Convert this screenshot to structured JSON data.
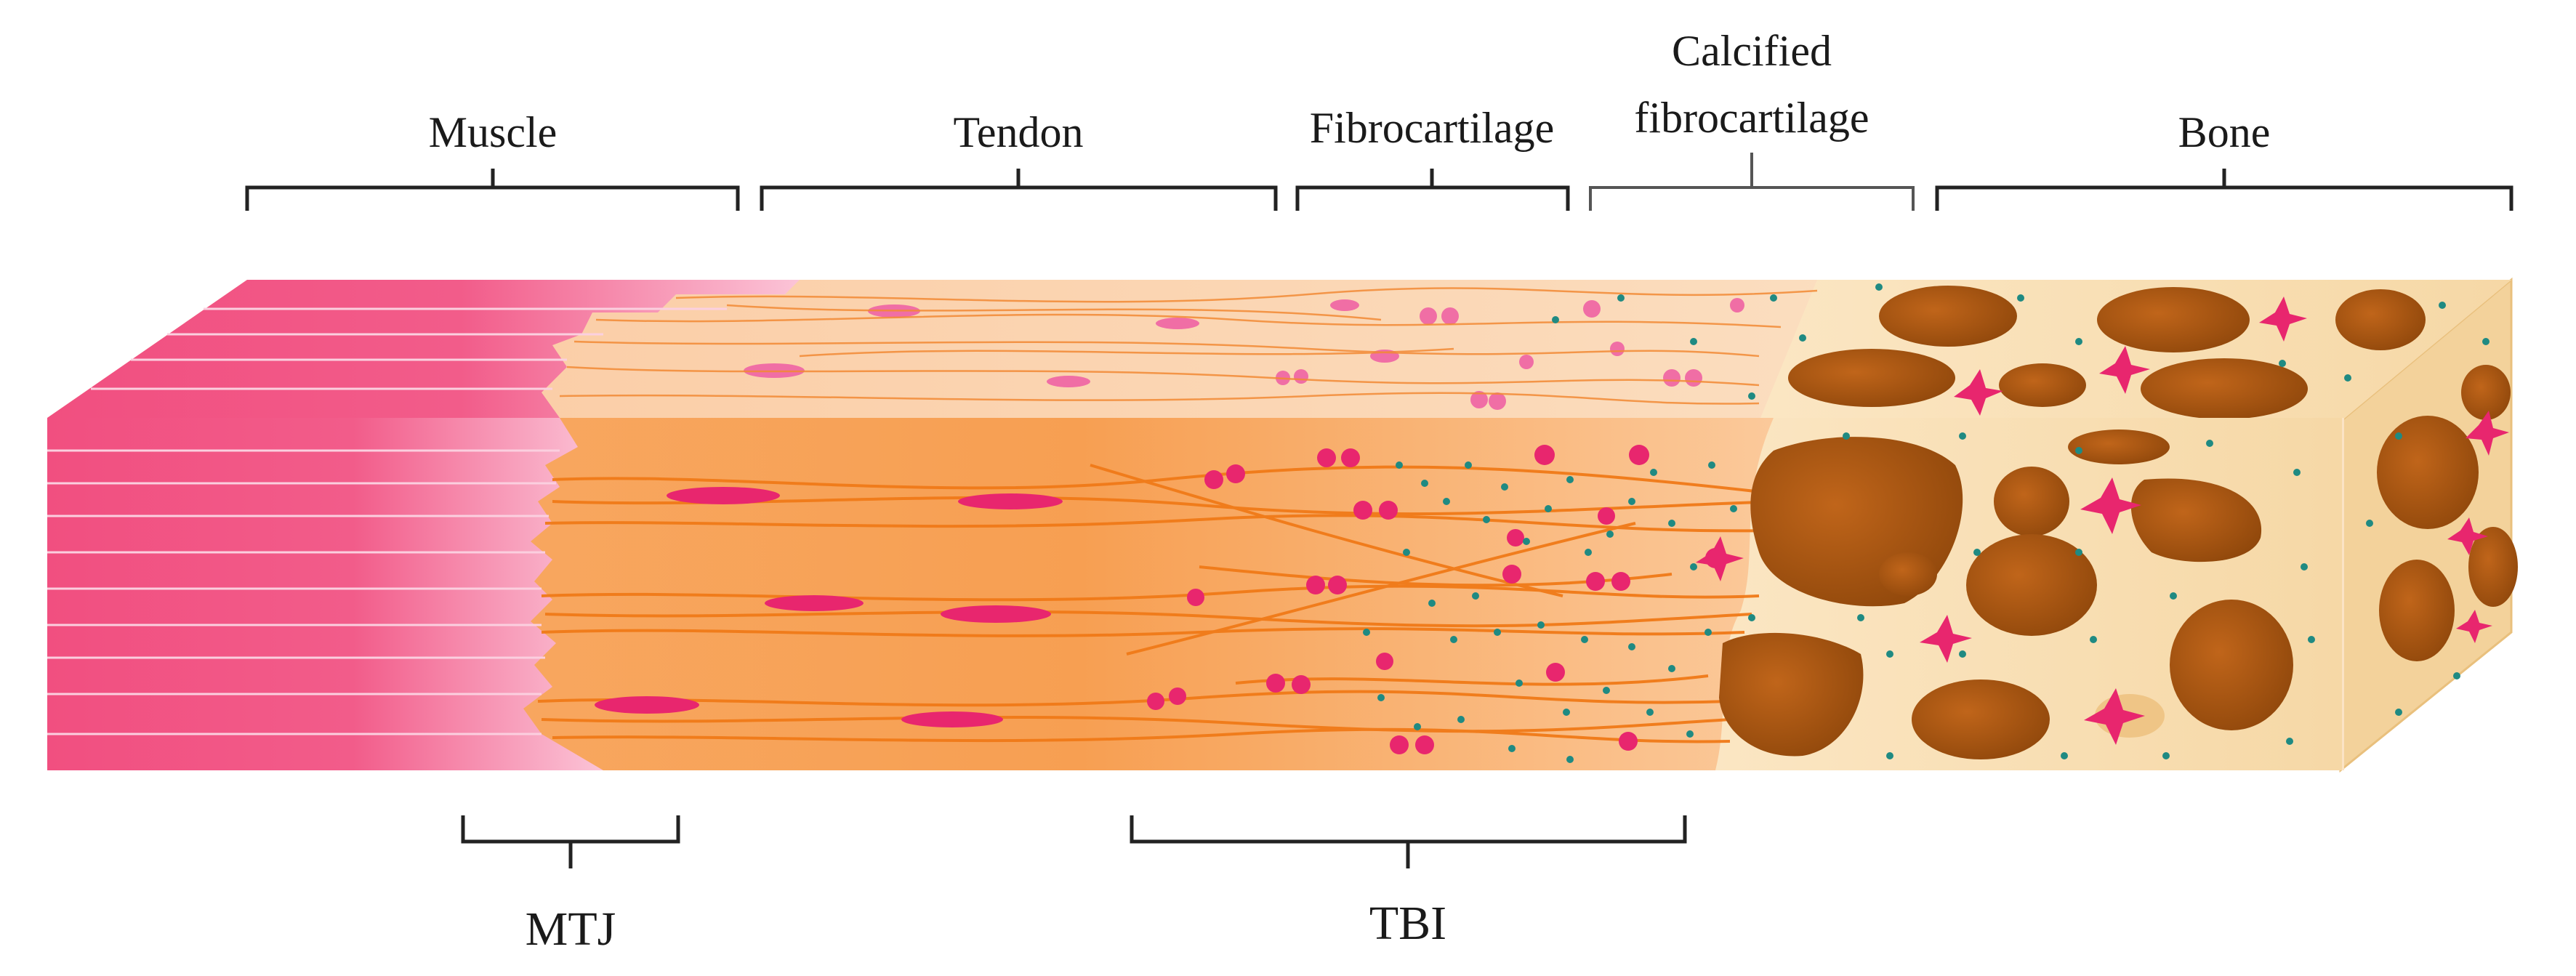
{
  "figure": {
    "top_labels": {
      "muscle": "Muscle",
      "tendon": "Tendon",
      "fibrocartilage": "Fibrocartilage",
      "calcified_line1": "Calcified",
      "calcified_line2": "fibrocartilage",
      "bone": "Bone"
    },
    "bottom_labels": {
      "mtj": "MTJ",
      "tbi": "TBI"
    },
    "colors": {
      "muscle": "#f04d7d",
      "muscle_light": "#f9b3cc",
      "tendon": "#f7a55c",
      "tendon_light": "#fbd3a7",
      "fiber": "#f07a18",
      "cell": "#e8266e",
      "dot": "#1f8a82",
      "bone_matrix": "#f7dfb3",
      "bone_pore": "#b8600f",
      "bone_pore_dark": "#8a420a"
    }
  }
}
